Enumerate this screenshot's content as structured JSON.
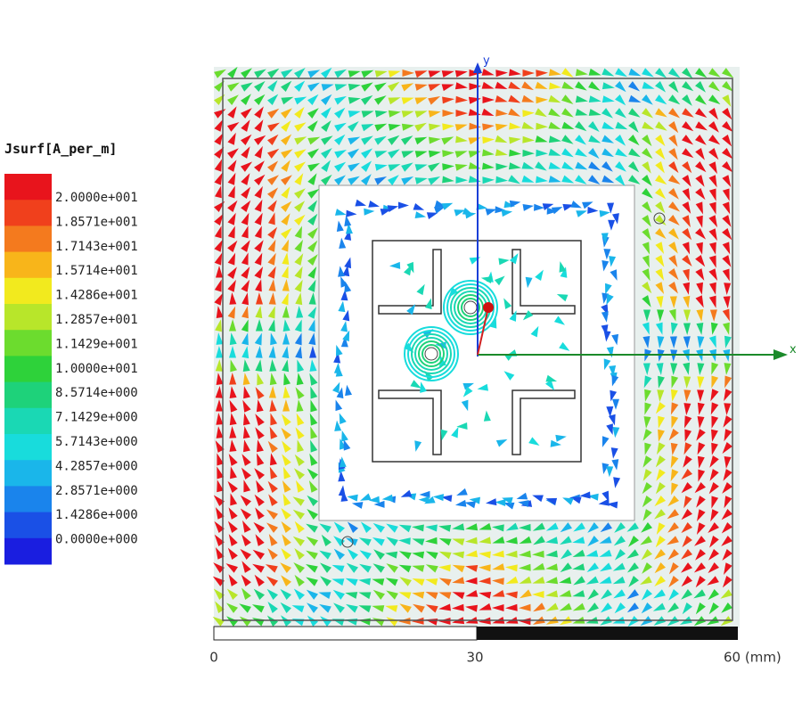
{
  "legend": {
    "title": "Jsurf[A_per_m]",
    "labels": [
      "2.0000e+001",
      "1.8571e+001",
      "1.7143e+001",
      "1.5714e+001",
      "1.4286e+001",
      "1.2857e+001",
      "1.1429e+001",
      "1.0000e+001",
      "8.5714e+000",
      "7.1429e+000",
      "5.7143e+000",
      "4.2857e+000",
      "2.8571e+000",
      "1.4286e+000",
      "0.0000e+000"
    ]
  },
  "axes": {
    "x": "x",
    "y": "y"
  },
  "scale": {
    "labels": [
      "0",
      "30",
      "60 (mm)"
    ]
  }
}
